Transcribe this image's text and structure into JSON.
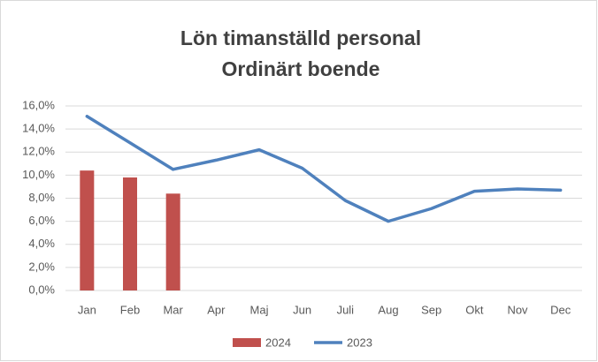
{
  "chart_data": {
    "type": "combo",
    "title": [
      "Lön timanställd personal",
      "Ordinärt boende"
    ],
    "categories": [
      "Jan",
      "Feb",
      "Mar",
      "Apr",
      "Maj",
      "Jun",
      "Juli",
      "Aug",
      "Sep",
      "Okt",
      "Nov",
      "Dec"
    ],
    "series": [
      {
        "name": "2024",
        "type": "bar",
        "color": "#c0504d",
        "values": [
          10.4,
          9.8,
          8.4,
          null,
          null,
          null,
          null,
          null,
          null,
          null,
          null,
          null
        ]
      },
      {
        "name": "2023",
        "type": "line",
        "color": "#4f81bd",
        "values": [
          15.1,
          12.8,
          10.5,
          11.3,
          12.2,
          10.6,
          7.8,
          6.0,
          7.1,
          8.6,
          8.8,
          8.7
        ]
      }
    ],
    "ylim": [
      0,
      16
    ],
    "yticks": [
      {
        "value": 0,
        "label": "0,0%"
      },
      {
        "value": 2,
        "label": "2,0%"
      },
      {
        "value": 4,
        "label": "4,0%"
      },
      {
        "value": 6,
        "label": "6,0%"
      },
      {
        "value": 8,
        "label": "8,0%"
      },
      {
        "value": 10,
        "label": "10,0%"
      },
      {
        "value": 12,
        "label": "12,0%"
      },
      {
        "value": 14,
        "label": "14,0%"
      },
      {
        "value": 16,
        "label": "16,0%"
      }
    ],
    "grid": true,
    "legend": "bottom"
  }
}
